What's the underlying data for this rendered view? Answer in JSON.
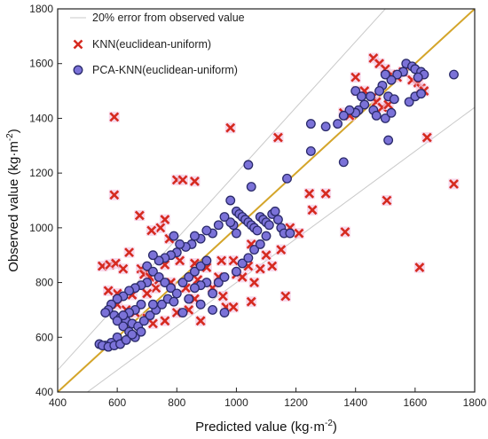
{
  "chart_data": {
    "type": "scatter",
    "xlabel": "Predicted value (kg·m",
    "xlabel_sup": "-2",
    "xlabel_end": ")",
    "ylabel": "Observed value (kg·m",
    "ylabel_sup": "-2",
    "ylabel_end": ")",
    "xlim": [
      400,
      1800
    ],
    "ylim": [
      400,
      1800
    ],
    "xticks": [
      400,
      600,
      800,
      1000,
      1200,
      1400,
      1600,
      1800
    ],
    "yticks": [
      400,
      600,
      800,
      1000,
      1200,
      1400,
      1600,
      1800
    ],
    "legend_position": "top-left",
    "reference_lines": {
      "identity": {
        "slope": 1,
        "color": "#d4a52a"
      },
      "error_band": {
        "name": "20% error from observed value",
        "factors": [
          1.2,
          0.8
        ],
        "color": "#c9c9c9"
      }
    },
    "series": [
      {
        "name": "KNN(euclidean-uniform)",
        "marker": "x",
        "color": "#d62a20",
        "points": [
          [
            590,
            1405
          ],
          [
            980,
            1365
          ],
          [
            1140,
            1330
          ],
          [
            1640,
            1330
          ],
          [
            1730,
            1160
          ],
          [
            1505,
            1100
          ],
          [
            1615,
            855
          ],
          [
            1365,
            985
          ],
          [
            1245,
            1125
          ],
          [
            1300,
            1125
          ],
          [
            1255,
            1065
          ],
          [
            1165,
            750
          ],
          [
            1050,
            730
          ],
          [
            590,
            1120
          ],
          [
            800,
            1175
          ],
          [
            820,
            1175
          ],
          [
            860,
            1170
          ],
          [
            675,
            1045
          ],
          [
            760,
            1030
          ],
          [
            745,
            1000
          ],
          [
            715,
            990
          ],
          [
            775,
            960
          ],
          [
            640,
            910
          ],
          [
            760,
            865
          ],
          [
            810,
            880
          ],
          [
            860,
            870
          ],
          [
            900,
            855
          ],
          [
            950,
            880
          ],
          [
            990,
            880
          ],
          [
            1040,
            860
          ],
          [
            1080,
            850
          ],
          [
            1120,
            860
          ],
          [
            1000,
            830
          ],
          [
            1020,
            820
          ],
          [
            1060,
            800
          ],
          [
            955,
            750
          ],
          [
            965,
            710
          ],
          [
            990,
            710
          ],
          [
            860,
            740
          ],
          [
            920,
            780
          ],
          [
            940,
            820
          ],
          [
            870,
            810
          ],
          [
            830,
            780
          ],
          [
            780,
            800
          ],
          [
            730,
            780
          ],
          [
            700,
            760
          ],
          [
            650,
            755
          ],
          [
            600,
            760
          ],
          [
            570,
            770
          ],
          [
            550,
            860
          ],
          [
            575,
            865
          ],
          [
            595,
            870
          ],
          [
            620,
            850
          ],
          [
            680,
            850
          ],
          [
            690,
            830
          ],
          [
            710,
            820
          ],
          [
            740,
            810
          ],
          [
            600,
            720
          ],
          [
            630,
            700
          ],
          [
            660,
            690
          ],
          [
            700,
            670
          ],
          [
            720,
            650
          ],
          [
            760,
            660
          ],
          [
            800,
            690
          ],
          [
            840,
            700
          ],
          [
            880,
            660
          ],
          [
            1460,
            1620
          ],
          [
            1480,
            1600
          ],
          [
            1500,
            1580
          ],
          [
            1520,
            1560
          ],
          [
            1540,
            1550
          ],
          [
            1560,
            1570
          ],
          [
            1590,
            1540
          ],
          [
            1610,
            1530
          ],
          [
            1620,
            1510
          ],
          [
            1630,
            1500
          ],
          [
            1460,
            1480
          ],
          [
            1470,
            1460
          ],
          [
            1490,
            1440
          ],
          [
            1510,
            1450
          ],
          [
            1400,
            1550
          ],
          [
            1405,
            1500
          ],
          [
            1430,
            1500
          ],
          [
            1360,
            1420
          ],
          [
            1380,
            1410
          ],
          [
            1180,
            1000
          ],
          [
            1210,
            980
          ],
          [
            1100,
            900
          ],
          [
            1150,
            920
          ],
          [
            1050,
            940
          ]
        ]
      },
      {
        "name": "PCA-KNN(euclidean-uniform)",
        "marker": "o",
        "color": "#7b72d8",
        "points": [
          [
            1730,
            1560
          ],
          [
            1570,
            1600
          ],
          [
            1590,
            1590
          ],
          [
            1600,
            1580
          ],
          [
            1620,
            1570
          ],
          [
            1630,
            1560
          ],
          [
            1610,
            1550
          ],
          [
            1560,
            1570
          ],
          [
            1540,
            1560
          ],
          [
            1520,
            1540
          ],
          [
            1500,
            1560
          ],
          [
            1490,
            1520
          ],
          [
            1480,
            1500
          ],
          [
            1510,
            1480
          ],
          [
            1530,
            1470
          ],
          [
            1450,
            1480
          ],
          [
            1430,
            1450
          ],
          [
            1410,
            1430
          ],
          [
            1400,
            1420
          ],
          [
            1460,
            1430
          ],
          [
            1470,
            1410
          ],
          [
            1500,
            1400
          ],
          [
            1520,
            1420
          ],
          [
            1380,
            1430
          ],
          [
            1360,
            1410
          ],
          [
            1340,
            1380
          ],
          [
            1300,
            1370
          ],
          [
            1250,
            1380
          ],
          [
            1360,
            1240
          ],
          [
            1400,
            1500
          ],
          [
            1420,
            1480
          ],
          [
            1580,
            1460
          ],
          [
            1600,
            1480
          ],
          [
            1620,
            1490
          ],
          [
            1510,
            1320
          ],
          [
            1250,
            1280
          ],
          [
            1170,
            1180
          ],
          [
            1040,
            1230
          ],
          [
            1050,
            1150
          ],
          [
            980,
            1100
          ],
          [
            1000,
            1060
          ],
          [
            1010,
            1050
          ],
          [
            1020,
            1040
          ],
          [
            1030,
            1030
          ],
          [
            1040,
            1020
          ],
          [
            1050,
            1010
          ],
          [
            1060,
            1000
          ],
          [
            1070,
            990
          ],
          [
            1080,
            1040
          ],
          [
            1090,
            1030
          ],
          [
            1100,
            1020
          ],
          [
            1110,
            1010
          ],
          [
            1120,
            1050
          ],
          [
            1130,
            1060
          ],
          [
            1140,
            1030
          ],
          [
            1150,
            1000
          ],
          [
            1160,
            980
          ],
          [
            1180,
            980
          ],
          [
            1100,
            970
          ],
          [
            1000,
            980
          ],
          [
            990,
            1010
          ],
          [
            980,
            1020
          ],
          [
            960,
            1040
          ],
          [
            940,
            1010
          ],
          [
            920,
            980
          ],
          [
            900,
            990
          ],
          [
            880,
            960
          ],
          [
            860,
            970
          ],
          [
            850,
            940
          ],
          [
            830,
            930
          ],
          [
            810,
            940
          ],
          [
            790,
            970
          ],
          [
            800,
            910
          ],
          [
            780,
            900
          ],
          [
            760,
            890
          ],
          [
            740,
            880
          ],
          [
            720,
            900
          ],
          [
            700,
            860
          ],
          [
            720,
            840
          ],
          [
            740,
            820
          ],
          [
            760,
            800
          ],
          [
            780,
            780
          ],
          [
            800,
            760
          ],
          [
            820,
            800
          ],
          [
            840,
            820
          ],
          [
            860,
            840
          ],
          [
            880,
            860
          ],
          [
            900,
            880
          ],
          [
            900,
            800
          ],
          [
            880,
            790
          ],
          [
            860,
            780
          ],
          [
            920,
            760
          ],
          [
            940,
            800
          ],
          [
            960,
            820
          ],
          [
            1000,
            840
          ],
          [
            1020,
            870
          ],
          [
            1040,
            890
          ],
          [
            1060,
            920
          ],
          [
            1080,
            940
          ],
          [
            700,
            800
          ],
          [
            680,
            790
          ],
          [
            660,
            780
          ],
          [
            640,
            770
          ],
          [
            620,
            750
          ],
          [
            600,
            740
          ],
          [
            580,
            720
          ],
          [
            570,
            700
          ],
          [
            560,
            690
          ],
          [
            590,
            680
          ],
          [
            610,
            670
          ],
          [
            630,
            660
          ],
          [
            650,
            650
          ],
          [
            670,
            640
          ],
          [
            690,
            660
          ],
          [
            710,
            680
          ],
          [
            730,
            700
          ],
          [
            750,
            720
          ],
          [
            770,
            740
          ],
          [
            790,
            730
          ],
          [
            680,
            720
          ],
          [
            660,
            700
          ],
          [
            640,
            690
          ],
          [
            620,
            680
          ],
          [
            600,
            660
          ],
          [
            620,
            640
          ],
          [
            640,
            620
          ],
          [
            660,
            600
          ],
          [
            680,
            620
          ],
          [
            600,
            600
          ],
          [
            580,
            580
          ],
          [
            560,
            570
          ],
          [
            540,
            575
          ],
          [
            550,
            570
          ],
          [
            570,
            565
          ],
          [
            590,
            570
          ],
          [
            610,
            575
          ],
          [
            630,
            590
          ],
          [
            650,
            610
          ],
          [
            720,
            720
          ],
          [
            840,
            740
          ],
          [
            880,
            720
          ],
          [
            920,
            700
          ],
          [
            960,
            690
          ],
          [
            820,
            690
          ]
        ]
      }
    ]
  }
}
